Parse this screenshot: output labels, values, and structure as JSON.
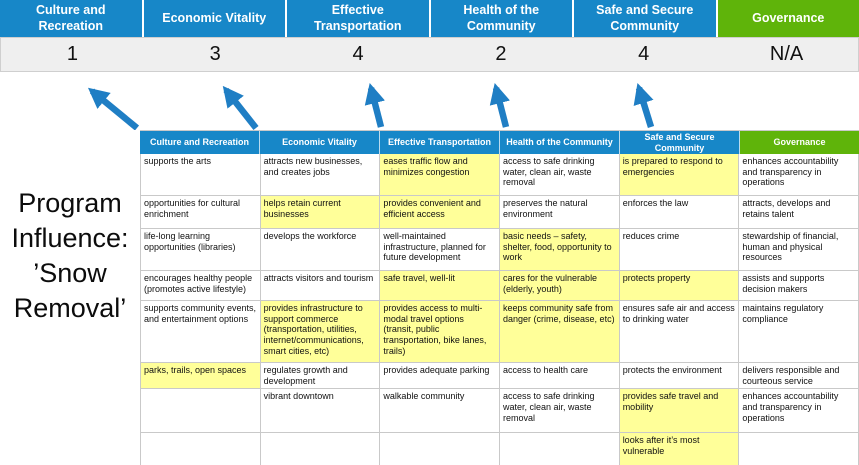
{
  "title": {
    "lines": [
      "Program",
      "Influence:",
      "’Snow",
      "Removal’"
    ]
  },
  "colors": {
    "blue": "#1787C8",
    "green": "#5FB40A",
    "highlight": "#FFFF99",
    "arrow": "#1F7EC4",
    "score_bg": "#EFEFEF",
    "border": "#C9C9C9"
  },
  "summary": {
    "columns": [
      {
        "label": "Culture and Recreation",
        "score": "1",
        "color": "#1787C8"
      },
      {
        "label": "Economic Vitality",
        "score": "3",
        "color": "#1787C8"
      },
      {
        "label": "Effective Transportation",
        "score": "4",
        "color": "#1787C8"
      },
      {
        "label": "Health of the Community",
        "score": "2",
        "color": "#1787C8"
      },
      {
        "label": "Safe and Secure Community",
        "score": "4",
        "color": "#1787C8"
      },
      {
        "label": "Governance",
        "score": "N/A",
        "color": "#5FB40A"
      }
    ]
  },
  "table": {
    "rows": [
      [
        {
          "t": "supports the arts",
          "h": false
        },
        {
          "t": "attracts new businesses, and creates jobs",
          "h": false
        },
        {
          "t": "eases traffic flow and minimizes congestion",
          "h": true
        },
        {
          "t": "access to safe drinking water, clean air, waste removal",
          "h": false
        },
        {
          "t": "is prepared to respond to emergencies",
          "h": true
        },
        {
          "t": "enhances accountability and transparency in operations",
          "h": false
        }
      ],
      [
        {
          "t": "opportunities for cultural enrichment",
          "h": false
        },
        {
          "t": "helps retain current businesses",
          "h": true
        },
        {
          "t": "provides convenient and efficient access",
          "h": true
        },
        {
          "t": "preserves the natural environment",
          "h": false
        },
        {
          "t": "enforces the law",
          "h": false
        },
        {
          "t": "attracts, develops and retains talent",
          "h": false
        }
      ],
      [
        {
          "t": "life-long learning opportunities (libraries)",
          "h": false
        },
        {
          "t": "develops the workforce",
          "h": false
        },
        {
          "t": "well-maintained infrastructure, planned for future development",
          "h": false
        },
        {
          "t": "basic needs – safety, shelter, food, opportunity to work",
          "h": true
        },
        {
          "t": "reduces crime",
          "h": false
        },
        {
          "t": "stewardship of financial, human and physical resources",
          "h": false
        }
      ],
      [
        {
          "t": "encourages healthy people (promotes active lifestyle)",
          "h": false
        },
        {
          "t": "attracts visitors and tourism",
          "h": false
        },
        {
          "t": "safe travel, well-lit",
          "h": true
        },
        {
          "t": "cares for the vulnerable (elderly, youth)",
          "h": true
        },
        {
          "t": "protects property",
          "h": true
        },
        {
          "t": "assists and supports decision makers",
          "h": false
        }
      ],
      [
        {
          "t": "supports community events, and entertainment options",
          "h": false
        },
        {
          "t": "provides infrastructure to support commerce (transportation, utilities, internet/communications, smart cities, etc)",
          "h": true
        },
        {
          "t": "provides access to multi-modal travel options (transit, public transportation, bike lanes, trails)",
          "h": true
        },
        {
          "t": "keeps community safe from danger (crime, disease, etc)",
          "h": true
        },
        {
          "t": "ensures safe air and access to drinking water",
          "h": false
        },
        {
          "t": "maintains regulatory compliance",
          "h": false
        }
      ],
      [
        {
          "t": "parks, trails, open spaces",
          "h": true
        },
        {
          "t": "regulates growth and development",
          "h": false
        },
        {
          "t": "provides adequate parking",
          "h": false
        },
        {
          "t": "access to health care",
          "h": false
        },
        {
          "t": "protects the environment",
          "h": false
        },
        {
          "t": "delivers responsible and courteous service",
          "h": false
        }
      ],
      [
        {
          "t": "",
          "h": false
        },
        {
          "t": "vibrant downtown",
          "h": false
        },
        {
          "t": "walkable community",
          "h": false
        },
        {
          "t": "access to safe drinking water, clean air, waste removal",
          "h": false
        },
        {
          "t": "provides safe travel and mobility",
          "h": true
        },
        {
          "t": "enhances accountability and transparency in operations",
          "h": false
        }
      ],
      [
        {
          "t": "",
          "h": false
        },
        {
          "t": "",
          "h": false
        },
        {
          "t": "",
          "h": false
        },
        {
          "t": "",
          "h": false
        },
        {
          "t": "looks after it’s most vulnerable",
          "h": true
        },
        {
          "t": "",
          "h": false
        }
      ]
    ]
  }
}
